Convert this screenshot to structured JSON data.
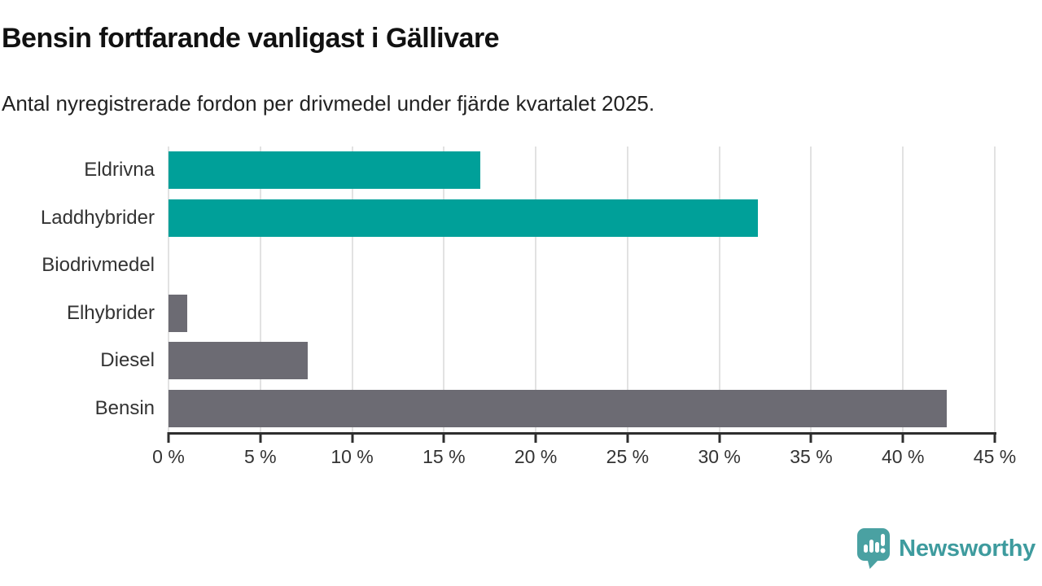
{
  "header": {
    "title": "Bensin fortfarande vanligast i Gällivare",
    "subtitle": "Antal nyregistrerade fordon per drivmedel under fjärde kvartalet 2025."
  },
  "chart_data": {
    "type": "bar",
    "orientation": "horizontal",
    "title": "Bensin fortfarande vanligast i Gällivare",
    "subtitle": "Antal nyregistrerade fordon per drivmedel under fjärde kvartalet 2025.",
    "categories": [
      "Eldrivna",
      "Laddhybrider",
      "Biodrivmedel",
      "Elhybrider",
      "Diesel",
      "Bensin"
    ],
    "values": [
      17,
      32.1,
      0,
      1,
      7.6,
      42.4
    ],
    "unit": "%",
    "xlim": [
      0,
      45
    ],
    "x_ticks": [
      0,
      5,
      10,
      15,
      20,
      25,
      30,
      35,
      40,
      45
    ],
    "x_tick_labels": [
      "0 %",
      "5 %",
      "10 %",
      "15 %",
      "20 %",
      "25 %",
      "30 %",
      "35 %",
      "40 %",
      "45 %"
    ],
    "bar_colors": [
      "#00A099",
      "#00A099",
      "#6C6B73",
      "#6C6B73",
      "#6C6B73",
      "#6C6B73"
    ],
    "grid": "vertical",
    "legend": "none"
  },
  "colors": {
    "teal": "#00A099",
    "gray": "#6C6B73",
    "axis": "#2e2e2e",
    "gridline": "#e2e2e2",
    "label_text": "#333333"
  },
  "branding": {
    "logo_text": "Newsworthy",
    "logo_mark_color": "#4AA1A2",
    "logo_text_color": "#3e9b9e",
    "logo_icon": "speech-bubble-bar-chart-exclamation"
  }
}
